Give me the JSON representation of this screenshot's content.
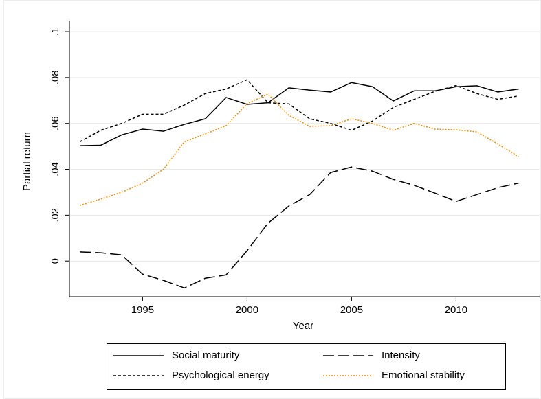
{
  "chart_data": {
    "type": "line",
    "x_label": "Year",
    "y_label": "Partial return",
    "x": [
      1992,
      1993,
      1994,
      1995,
      1996,
      1997,
      1998,
      1999,
      2000,
      2001,
      2002,
      2003,
      2004,
      2005,
      2006,
      2007,
      2008,
      2009,
      2010,
      2011,
      2012,
      2013
    ],
    "series": [
      {
        "name": "Social maturity",
        "color": "#000000",
        "dash": "none",
        "values": [
          0.0503,
          0.0505,
          0.055,
          0.0575,
          0.0566,
          0.0596,
          0.062,
          0.0713,
          0.0683,
          0.069,
          0.0755,
          0.0745,
          0.0737,
          0.0778,
          0.076,
          0.0698,
          0.0742,
          0.0742,
          0.076,
          0.0764,
          0.0737,
          0.075
        ]
      },
      {
        "name": "Intensity",
        "color": "#000000",
        "dash": "16 6",
        "values": [
          0.004,
          0.0036,
          0.0027,
          -0.0057,
          -0.0084,
          -0.0117,
          -0.0075,
          -0.006,
          0.0045,
          0.0165,
          0.024,
          0.029,
          0.0386,
          0.041,
          0.0392,
          0.0356,
          0.033,
          0.0296,
          0.026,
          0.029,
          0.032,
          0.034
        ]
      },
      {
        "name": "Psychological energy",
        "color": "#000000",
        "dash": "4 3",
        "values": [
          0.052,
          0.057,
          0.06,
          0.064,
          0.064,
          0.068,
          0.073,
          0.075,
          0.079,
          0.069,
          0.0685,
          0.062,
          0.06,
          0.057,
          0.061,
          0.067,
          0.0705,
          0.074,
          0.0765,
          0.073,
          0.0705,
          0.072
        ]
      },
      {
        "name": "Emotional stability",
        "color": "#e8900c",
        "dash": "2 2",
        "values": [
          0.0243,
          0.027,
          0.03,
          0.034,
          0.04,
          0.052,
          0.0554,
          0.059,
          0.0686,
          0.0728,
          0.0635,
          0.0587,
          0.059,
          0.062,
          0.06,
          0.057,
          0.06,
          0.0575,
          0.0572,
          0.0563,
          0.051,
          0.0455
        ]
      }
    ],
    "xlim": [
      1991.5,
      2014
    ],
    "xticks": [
      1995,
      2000,
      2005,
      2010
    ],
    "ylim": [
      -0.0155,
      0.1048
    ],
    "yticks": [
      {
        "value": 0,
        "label": "0"
      },
      {
        "value": 0.02,
        "label": ".02"
      },
      {
        "value": 0.04,
        "label": ".04"
      },
      {
        "value": 0.06,
        "label": ".06"
      },
      {
        "value": 0.08,
        "label": ".08"
      },
      {
        "value": 0.1,
        "label": ".1"
      }
    ],
    "grid": true,
    "legend_position": "bottom"
  }
}
